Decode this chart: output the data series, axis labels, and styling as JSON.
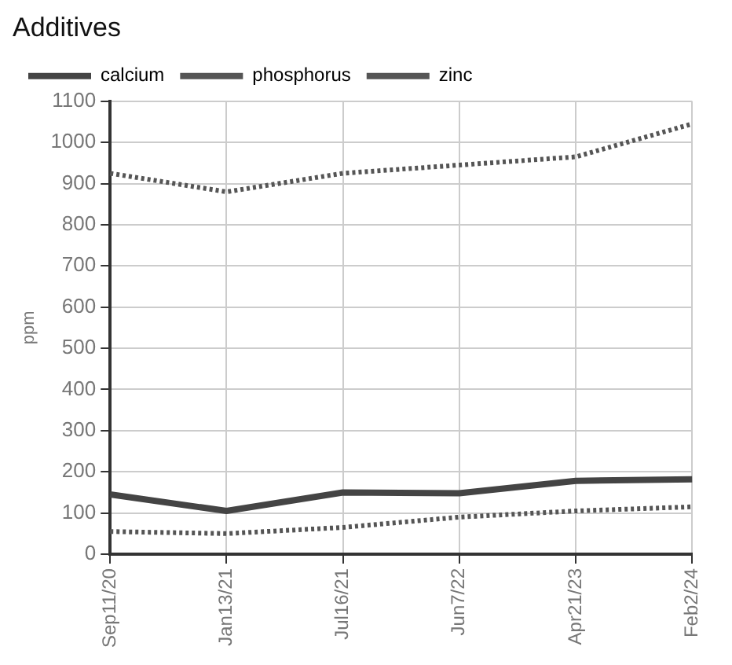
{
  "chart_data": {
    "type": "line",
    "title": "Additives",
    "ylabel": "ppm",
    "categories": [
      "Sep11/20",
      "Jan13/21",
      "Jul16/21",
      "Jun7/22",
      "Apr21/23",
      "Feb2/24"
    ],
    "series": [
      {
        "name": "calcium",
        "color": "#444444",
        "line_style": "solid",
        "values": [
          145,
          105,
          150,
          148,
          178,
          182
        ]
      },
      {
        "name": "phosphorus",
        "color": "#555555",
        "line_style": "dotted",
        "values": [
          925,
          880,
          925,
          945,
          965,
          1045
        ]
      },
      {
        "name": "zinc",
        "color": "#555555",
        "line_style": "dotted",
        "values": [
          55,
          50,
          65,
          90,
          105,
          115
        ]
      }
    ],
    "ylim": [
      0,
      1100
    ],
    "yticks": [
      0,
      100,
      200,
      300,
      400,
      500,
      600,
      700,
      800,
      900,
      1000,
      1100
    ],
    "grid": true,
    "legend": "top left",
    "marker": "none"
  }
}
